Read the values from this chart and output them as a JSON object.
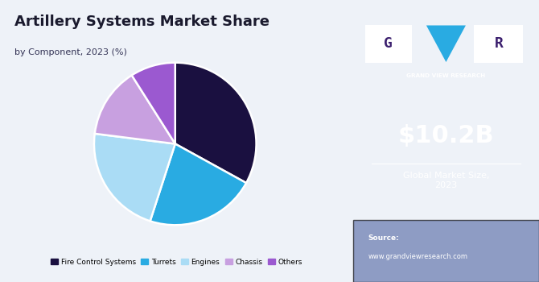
{
  "title_line1": "Artillery Systems Market Share",
  "title_line2": "by Component, 2023 (%)",
  "slices": [
    {
      "label": "Fire Control Systems",
      "value": 33,
      "color": "#1a1040"
    },
    {
      "label": "Turrets",
      "value": 22,
      "color": "#29abe2"
    },
    {
      "label": "Engines",
      "value": 22,
      "color": "#aadcf5"
    },
    {
      "label": "Chassis",
      "value": 14,
      "color": "#c8a0e0"
    },
    {
      "label": "Others",
      "value": 9,
      "color": "#9b59d0"
    }
  ],
  "start_angle": 90,
  "sidebar_bg": "#3b1f6e",
  "sidebar_bottom_bg": "#5b6fa8",
  "chart_bg": "#eef2f8",
  "market_size_value": "$10.2B",
  "market_size_label": "Global Market Size,\n2023",
  "source_label": "Source:",
  "source_url": "www.grandviewresearch.com",
  "logo_text": "GRAND VIEW RESEARCH",
  "legend_labels": [
    "Fire Control Systems",
    "Turrets",
    "Engines",
    "Chassis",
    "Others"
  ],
  "legend_colors": [
    "#1a1040",
    "#29abe2",
    "#aadcf5",
    "#c8a0e0",
    "#9b59d0"
  ]
}
